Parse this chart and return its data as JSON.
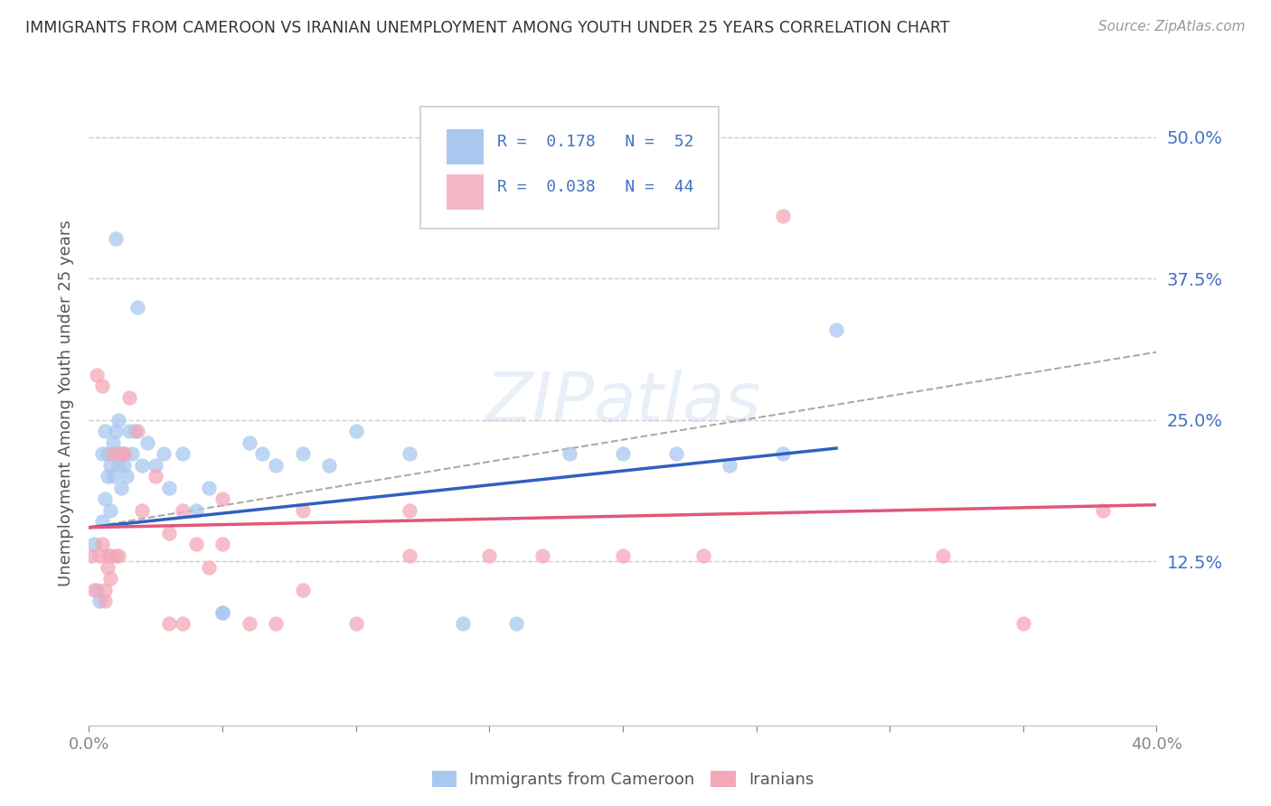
{
  "title": "IMMIGRANTS FROM CAMEROON VS IRANIAN UNEMPLOYMENT AMONG YOUTH UNDER 25 YEARS CORRELATION CHART",
  "source": "Source: ZipAtlas.com",
  "ylabel": "Unemployment Among Youth under 25 years",
  "xlim": [
    0.0,
    0.4
  ],
  "ylim": [
    -0.02,
    0.55
  ],
  "yticks": [
    0.0,
    0.125,
    0.25,
    0.375,
    0.5
  ],
  "ytick_labels": [
    "",
    "12.5%",
    "25.0%",
    "37.5%",
    "50.0%"
  ],
  "grid_color": "#cccccc",
  "background_color": "#ffffff",
  "series1_color": "#a8c8f0",
  "series2_color": "#f4a8b8",
  "series1_label": "Immigrants from Cameroon",
  "series2_label": "Iranians",
  "R1": "0.178",
  "N1": "52",
  "R2": "0.038",
  "N2": "44",
  "legend_box_color1": "#a8c8f0",
  "legend_box_color2": "#f4b8c8",
  "watermark": "ZIPatlas",
  "blue_line_color": "#3060c0",
  "pink_line_color": "#e05878",
  "gray_dash_color": "#aaaaaa",
  "series1_x": [
    0.002,
    0.003,
    0.004,
    0.005,
    0.005,
    0.006,
    0.006,
    0.007,
    0.007,
    0.008,
    0.008,
    0.009,
    0.009,
    0.01,
    0.01,
    0.011,
    0.011,
    0.012,
    0.012,
    0.013,
    0.013,
    0.014,
    0.015,
    0.016,
    0.017,
    0.018,
    0.02,
    0.022,
    0.025,
    0.028,
    0.03,
    0.035,
    0.04,
    0.045,
    0.05,
    0.06,
    0.065,
    0.07,
    0.08,
    0.09,
    0.1,
    0.12,
    0.14,
    0.16,
    0.18,
    0.2,
    0.22,
    0.24,
    0.26,
    0.28,
    0.05,
    0.01
  ],
  "series1_y": [
    0.14,
    0.1,
    0.09,
    0.16,
    0.22,
    0.18,
    0.24,
    0.2,
    0.22,
    0.17,
    0.21,
    0.23,
    0.2,
    0.22,
    0.24,
    0.21,
    0.25,
    0.22,
    0.19,
    0.21,
    0.22,
    0.2,
    0.24,
    0.22,
    0.24,
    0.35,
    0.21,
    0.23,
    0.21,
    0.22,
    0.19,
    0.22,
    0.17,
    0.19,
    0.08,
    0.23,
    0.22,
    0.21,
    0.22,
    0.21,
    0.24,
    0.22,
    0.07,
    0.07,
    0.22,
    0.22,
    0.22,
    0.21,
    0.22,
    0.33,
    0.08,
    0.41
  ],
  "series2_x": [
    0.001,
    0.002,
    0.003,
    0.004,
    0.005,
    0.005,
    0.006,
    0.006,
    0.007,
    0.007,
    0.008,
    0.008,
    0.009,
    0.01,
    0.011,
    0.012,
    0.013,
    0.015,
    0.018,
    0.02,
    0.025,
    0.03,
    0.035,
    0.04,
    0.045,
    0.05,
    0.06,
    0.07,
    0.08,
    0.1,
    0.12,
    0.15,
    0.17,
    0.2,
    0.23,
    0.26,
    0.32,
    0.35,
    0.38,
    0.12,
    0.05,
    0.08,
    0.035,
    0.03
  ],
  "series2_y": [
    0.13,
    0.1,
    0.29,
    0.13,
    0.28,
    0.14,
    0.09,
    0.1,
    0.13,
    0.12,
    0.11,
    0.13,
    0.22,
    0.13,
    0.13,
    0.22,
    0.22,
    0.27,
    0.24,
    0.17,
    0.2,
    0.15,
    0.17,
    0.14,
    0.12,
    0.14,
    0.07,
    0.07,
    0.17,
    0.07,
    0.17,
    0.13,
    0.13,
    0.13,
    0.13,
    0.43,
    0.13,
    0.07,
    0.17,
    0.13,
    0.18,
    0.1,
    0.07,
    0.07
  ]
}
